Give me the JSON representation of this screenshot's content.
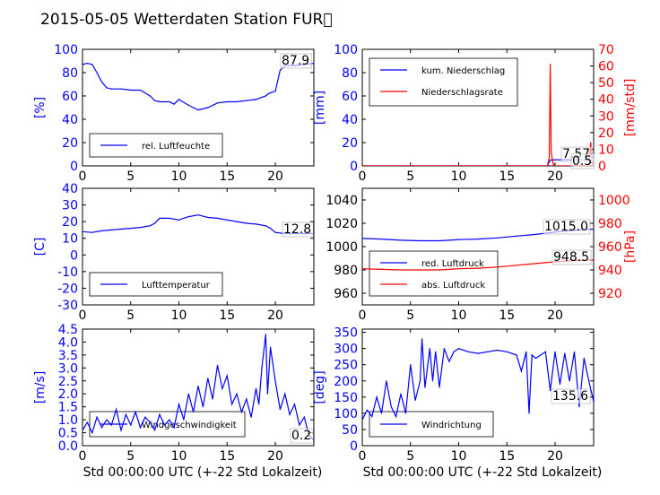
{
  "figure": {
    "title": "2015-05-05 Wetterdaten Station FUR\u0000",
    "colors": {
      "blue": "#0000ff",
      "red": "#ff0000",
      "black": "#000000"
    }
  },
  "chart_data": [
    {
      "type": "line",
      "id": "p1",
      "ylabel": "[%]",
      "xlim": [
        0,
        24
      ],
      "ylim": [
        0,
        100
      ],
      "xticks": [
        0,
        5,
        10,
        15,
        20
      ],
      "yticks": [
        0,
        20,
        40,
        60,
        80,
        100
      ],
      "legend": {
        "placement": "lower-left",
        "entries": [
          "rel. Luftfeuchte"
        ]
      },
      "annotations": [
        {
          "text": "87.9",
          "series": "rel. Luftfeuchte"
        }
      ],
      "series": [
        {
          "name": "rel. Luftfeuchte",
          "color": "#0000ff",
          "x": [
            0,
            0.5,
            1,
            1.5,
            2,
            2.5,
            3,
            4,
            5,
            6,
            7,
            7.5,
            8,
            9,
            9.5,
            10,
            11,
            11.5,
            12,
            13,
            14,
            15,
            16,
            17,
            18,
            19,
            19.3,
            19.6,
            20,
            20.5,
            21,
            22,
            23,
            24
          ],
          "y": [
            87,
            88,
            87,
            80,
            72,
            67,
            66,
            66,
            65,
            65,
            60,
            56,
            55,
            55,
            53,
            57,
            52,
            50,
            48,
            50,
            54,
            55,
            55,
            56,
            57,
            60,
            62,
            63,
            64,
            82,
            86,
            86,
            87,
            87.9
          ]
        }
      ]
    },
    {
      "type": "line",
      "id": "p2",
      "ylabel": "[mm]",
      "ylabel_right": "[mm/std]",
      "xlim": [
        0,
        24
      ],
      "ylim": [
        0,
        100
      ],
      "ylim_right": [
        0,
        70
      ],
      "xticks": [
        0,
        5,
        10,
        15,
        20
      ],
      "yticks": [
        0,
        20,
        40,
        60,
        80,
        100
      ],
      "yticks_right": [
        0,
        10,
        20,
        30,
        40,
        50,
        60,
        70
      ],
      "legend": {
        "placement": "top-left",
        "entries": [
          "kum. Niederschlag",
          "Niederschlagsrate"
        ]
      },
      "annotations": [
        {
          "text": "7.57",
          "series": "kum. Niederschlag"
        },
        {
          "text": "0.5",
          "series": "Niederschlagsrate"
        }
      ],
      "series": [
        {
          "name": "kum. Niederschlag",
          "color": "#0000ff",
          "axis": "left",
          "x": [
            0,
            19.2,
            19.5,
            20,
            22,
            23,
            23.7,
            24
          ],
          "y": [
            0,
            0,
            5,
            5.2,
            5.3,
            5.4,
            7.0,
            7.57
          ]
        },
        {
          "name": "Niederschlagsrate",
          "color": "#ff0000",
          "axis": "right",
          "x": [
            0,
            19.2,
            19.4,
            19.5,
            19.6,
            19.8,
            20,
            23.5,
            23.7,
            23.8,
            24
          ],
          "y": [
            0,
            0,
            5,
            61,
            8,
            1,
            0,
            0,
            14,
            2,
            0.5
          ]
        }
      ]
    },
    {
      "type": "line",
      "id": "p3",
      "ylabel": "[C]",
      "xlim": [
        0,
        24
      ],
      "ylim": [
        -30,
        40
      ],
      "xticks": [
        0,
        5,
        10,
        15,
        20
      ],
      "yticks": [
        -30,
        -20,
        -10,
        0,
        10,
        20,
        30,
        40
      ],
      "legend": {
        "placement": "lower-left",
        "entries": [
          "Lufttemperatur"
        ]
      },
      "annotations": [
        {
          "text": "12.8",
          "series": "Lufttemperatur"
        }
      ],
      "series": [
        {
          "name": "Lufttemperatur",
          "color": "#0000ff",
          "x": [
            0,
            1,
            2,
            3,
            4,
            5,
            6,
            7,
            7.5,
            8,
            9,
            10,
            11,
            12,
            13,
            14,
            15,
            16,
            17,
            18,
            19,
            19.5,
            20,
            21,
            22,
            23,
            24
          ],
          "y": [
            14,
            13.5,
            14.5,
            15,
            15.5,
            16,
            16.5,
            17.5,
            19,
            22,
            22,
            21,
            23,
            24,
            22.5,
            22,
            21,
            20,
            19,
            18.5,
            17.5,
            16,
            13.5,
            12.8,
            12.8,
            12.8,
            12.8
          ]
        }
      ]
    },
    {
      "type": "line",
      "id": "p4",
      "ylabel_right": "[hPa]",
      "xlim": [
        0,
        24
      ],
      "ylim": [
        950,
        1050
      ],
      "ylim_right": [
        910,
        1010
      ],
      "xticks": [
        0,
        5,
        10,
        15,
        20
      ],
      "yticks": [
        960,
        980,
        1000,
        1020,
        1040
      ],
      "yticks_right": [
        920,
        940,
        960,
        980,
        1000
      ],
      "legend": {
        "placement": "lower-left",
        "entries": [
          "red. Luftdruck",
          "abs. Luftdruck"
        ]
      },
      "annotations": [
        {
          "text": "1015.0",
          "series": "red. Luftdruck"
        },
        {
          "text": "948.5",
          "series": "abs. Luftdruck"
        }
      ],
      "series": [
        {
          "name": "red. Luftdruck",
          "color": "#0000ff",
          "axis": "left",
          "x": [
            0,
            2,
            4,
            6,
            8,
            10,
            12,
            14,
            16,
            18,
            20,
            22,
            24
          ],
          "y": [
            1007,
            1006.5,
            1005.5,
            1005,
            1005,
            1006,
            1006.5,
            1007.5,
            1009,
            1010.5,
            1012.5,
            1014,
            1015
          ]
        },
        {
          "name": "abs. Luftdruck",
          "color": "#ff0000",
          "axis": "right",
          "x": [
            0,
            2,
            4,
            6,
            8,
            10,
            12,
            14,
            16,
            18,
            20,
            22,
            24
          ],
          "y": [
            941,
            940.5,
            940,
            940,
            940,
            941,
            941.5,
            942.5,
            944,
            945.5,
            947,
            948,
            948.5
          ]
        }
      ]
    },
    {
      "type": "line",
      "id": "p5",
      "ylabel": "[m/s]",
      "xlabel": "Std 00:00:00 UTC (+-22 Std Lokalzeit)",
      "xlim": [
        0,
        24
      ],
      "ylim": [
        0,
        4.5
      ],
      "xticks": [
        0,
        5,
        10,
        15,
        20
      ],
      "yticks": [
        0.0,
        0.5,
        1.0,
        1.5,
        2.0,
        2.5,
        3.0,
        3.5,
        4.0,
        4.5
      ],
      "legend": {
        "placement": "lower-left",
        "entries": [
          "Windgeschwindigkeit"
        ]
      },
      "annotations": [
        {
          "text": "0.2",
          "series": "Windgeschwindigkeit"
        }
      ],
      "series": [
        {
          "name": "Windgeschwindigkeit",
          "color": "#0000ff",
          "x": [
            0,
            0.5,
            1,
            1.5,
            2,
            2.5,
            3,
            3.5,
            4,
            4.5,
            5,
            5.5,
            6,
            6.5,
            7,
            7.5,
            8,
            8.5,
            9,
            9.5,
            10,
            10.5,
            11,
            11.5,
            12,
            12.5,
            13,
            13.5,
            14,
            14.5,
            15,
            15.5,
            16,
            16.5,
            17,
            17.5,
            18,
            18.3,
            18.6,
            19,
            19.2,
            19.5,
            20,
            20.5,
            21,
            21.5,
            22,
            22.5,
            23,
            23.5,
            24
          ],
          "y": [
            0.6,
            0.9,
            0.5,
            1.1,
            0.7,
            1.0,
            0.8,
            1.4,
            0.6,
            1.2,
            0.8,
            1.3,
            0.7,
            1.1,
            0.9,
            0.6,
            1.2,
            0.8,
            1.0,
            0.7,
            1.6,
            1.0,
            2.0,
            1.3,
            2.3,
            1.5,
            2.6,
            1.8,
            3.1,
            2.2,
            2.7,
            1.6,
            2.0,
            1.3,
            1.8,
            1.1,
            2.2,
            1.6,
            3.0,
            4.3,
            2.0,
            3.8,
            2.5,
            1.4,
            2.0,
            1.2,
            1.6,
            0.8,
            1.1,
            0.4,
            0.2
          ]
        }
      ]
    },
    {
      "type": "line",
      "id": "p6",
      "ylabel": "[deg]",
      "xlabel": "Std 00:00:00 UTC (+-22 Std Lokalzeit)",
      "xlim": [
        0,
        24
      ],
      "ylim": [
        0,
        360
      ],
      "xticks": [
        0,
        5,
        10,
        15,
        20
      ],
      "yticks": [
        0,
        50,
        100,
        150,
        200,
        250,
        300,
        350
      ],
      "legend": {
        "placement": "lower-left",
        "entries": [
          "Windrichtung"
        ]
      },
      "annotations": [
        {
          "text": "135.6",
          "series": "Windrichtung"
        }
      ],
      "series": [
        {
          "name": "Windrichtung",
          "color": "#0000ff",
          "x": [
            0,
            0.5,
            1,
            1.5,
            2,
            2.5,
            3,
            3.5,
            4,
            4.5,
            5,
            5.5,
            6,
            6.2,
            6.5,
            7,
            7.3,
            7.6,
            8,
            8.5,
            9,
            9.5,
            10,
            11,
            12,
            13,
            14,
            15,
            16,
            16.5,
            17,
            17.3,
            17.6,
            18,
            19,
            19.5,
            20,
            20.5,
            21,
            21.5,
            22,
            22.5,
            23,
            23.5,
            24
          ],
          "y": [
            80,
            110,
            90,
            150,
            100,
            200,
            120,
            90,
            160,
            100,
            250,
            140,
            200,
            330,
            180,
            300,
            200,
            290,
            180,
            300,
            260,
            290,
            300,
            290,
            285,
            290,
            295,
            290,
            280,
            230,
            290,
            100,
            280,
            270,
            290,
            170,
            290,
            190,
            285,
            200,
            290,
            120,
            270,
            200,
            135.6
          ]
        }
      ]
    }
  ]
}
